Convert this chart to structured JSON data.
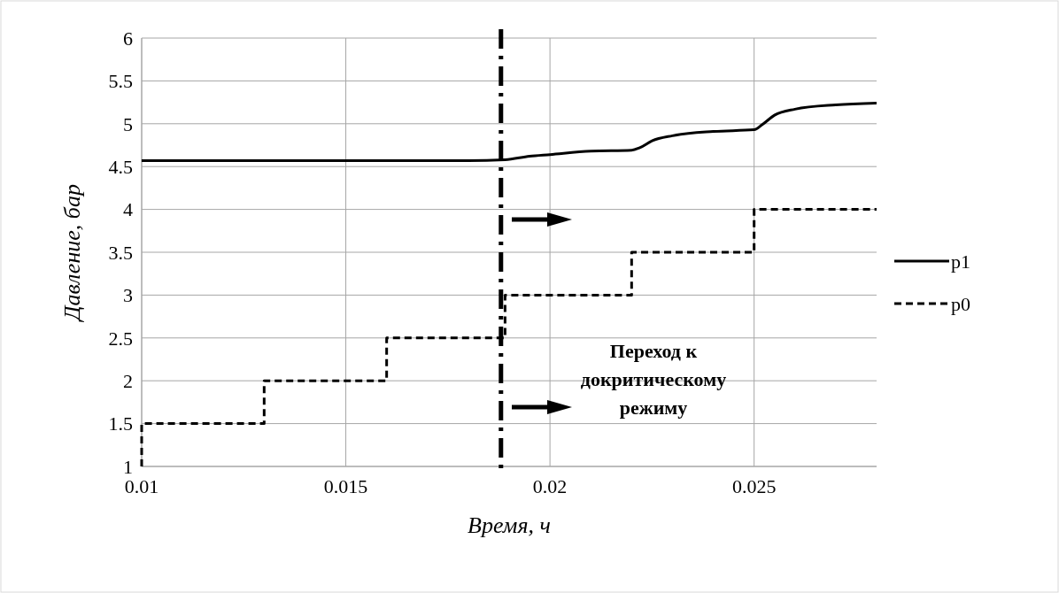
{
  "chart_data": {
    "type": "line",
    "xlabel": "Время, ч",
    "ylabel": "Давление, бар",
    "xlim": [
      0.01,
      0.028
    ],
    "xticks": [
      0.01,
      0.015,
      0.02,
      0.025
    ],
    "ylim": [
      1,
      6
    ],
    "yticks": [
      1,
      1.5,
      2,
      2.5,
      3,
      3.5,
      4,
      4.5,
      5,
      5.5,
      6
    ],
    "grid": true,
    "legend": "right",
    "series": [
      {
        "name": "p1",
        "color": "#000000",
        "line_style": "solid",
        "x": [
          0.01,
          0.012,
          0.014,
          0.016,
          0.018,
          0.0189,
          0.0195,
          0.02,
          0.021,
          0.022,
          0.0222,
          0.0225,
          0.023,
          0.024,
          0.025,
          0.0252,
          0.0255,
          0.026,
          0.027,
          0.028
        ],
        "values": [
          4.57,
          4.57,
          4.57,
          4.57,
          4.57,
          4.58,
          4.62,
          4.64,
          4.68,
          4.69,
          4.72,
          4.8,
          4.86,
          4.91,
          4.93,
          4.99,
          5.1,
          5.17,
          5.22,
          5.24
        ]
      },
      {
        "name": "p0",
        "color": "#000000",
        "type": "step",
        "line_style": "dashed",
        "x": [
          0.01,
          0.01,
          0.013,
          0.016,
          0.0189,
          0.022,
          0.025,
          0.028
        ],
        "values": [
          1,
          1.5,
          2,
          2.5,
          3,
          3.5,
          4,
          4
        ]
      }
    ],
    "ref_lines": [
      {
        "axis": "x",
        "value": 0.0188,
        "color": "#000000",
        "line_style": "dashed"
      }
    ],
    "annotations": [
      "Переход к докритическому режиму"
    ]
  }
}
